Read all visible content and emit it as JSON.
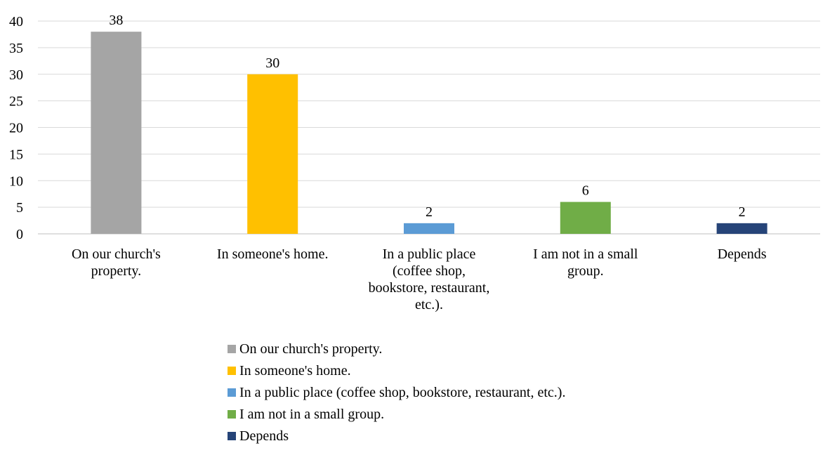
{
  "chart_data": {
    "type": "bar",
    "title": "",
    "xlabel": "",
    "ylabel": "",
    "ylim": [
      0,
      40
    ],
    "yticks": [
      0,
      5,
      10,
      15,
      20,
      25,
      30,
      35,
      40
    ],
    "grid": true,
    "legend": "bottom",
    "categories": [
      "On our church's property.",
      "In someone's home.",
      "In a public place (coffee shop, bookstore, restaurant, etc.).",
      "I am not in a small group.",
      "Depends"
    ],
    "category_label_lines": [
      [
        "On our church's",
        "property."
      ],
      [
        "In someone's home."
      ],
      [
        "In a public place",
        "(coffee shop,",
        "bookstore, restaurant,",
        "etc.)."
      ],
      [
        "I am not in a small",
        "group."
      ],
      [
        "Depends"
      ]
    ],
    "values": [
      38,
      30,
      2,
      6,
      2
    ],
    "data_labels": [
      "38",
      "30",
      "2",
      "6",
      "2"
    ],
    "colors": [
      "#a5a5a5",
      "#ffc000",
      "#5b9bd5",
      "#70ad47",
      "#264478"
    ],
    "legend_entries": [
      "On our church's property.",
      "In someone's home.",
      "In a public place (coffee shop, bookstore, restaurant, etc.).",
      "I am not in a small group.",
      "Depends"
    ]
  }
}
